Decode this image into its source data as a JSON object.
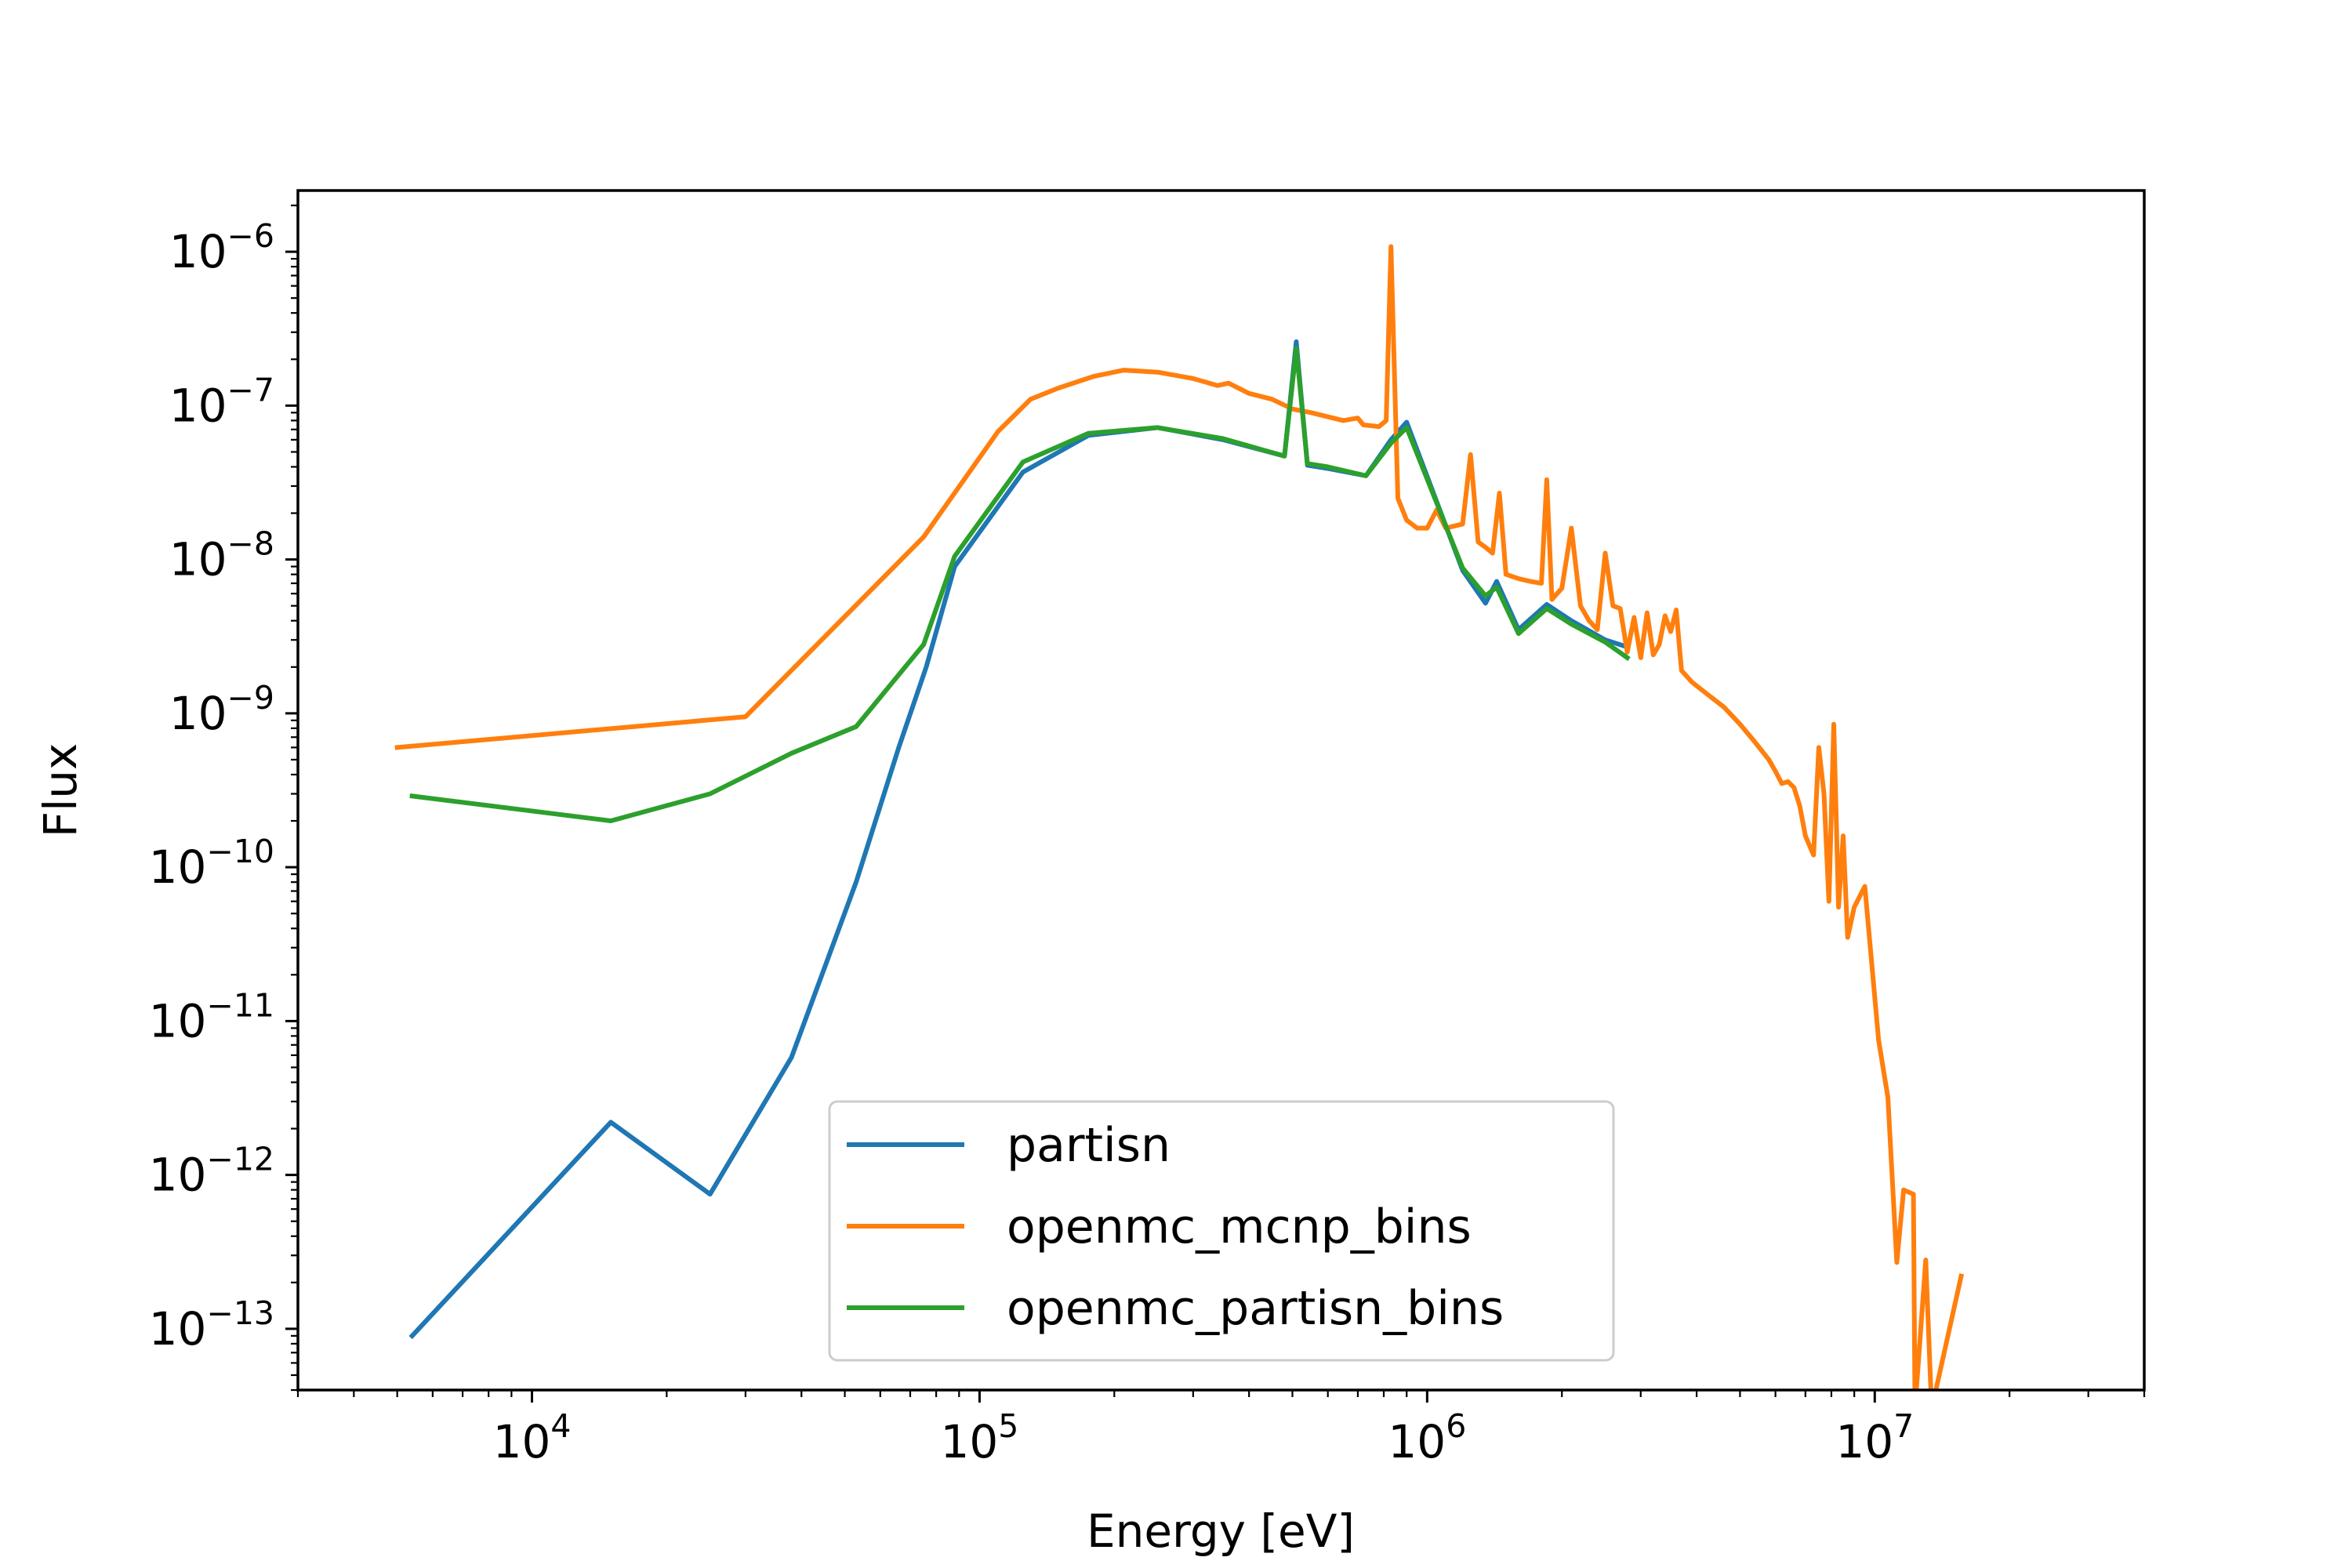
{
  "chart_data": {
    "type": "line",
    "xscale": "log",
    "yscale": "log",
    "xlabel": "Energy [eV]",
    "ylabel": "Flux",
    "xlim": [
      3000,
      40000000
    ],
    "ylim": [
      4e-14,
      2.5e-06
    ],
    "x_tick_exponents": [
      "4",
      "5",
      "6",
      "7"
    ],
    "y_tick_exponents": [
      "-6",
      "-7",
      "-8",
      "-9",
      "-10",
      "-11",
      "-12",
      "-13"
    ],
    "tick_base": "10",
    "legend": {
      "position": "lower-center"
    },
    "series": [
      {
        "name": "partisn",
        "color": "#1f77b4",
        "points": [
          [
            5400,
            9e-14
          ],
          [
            15000,
            2.2e-12
          ],
          [
            25000,
            7.5e-13
          ],
          [
            38000,
            5.8e-12
          ],
          [
            53000,
            8e-11
          ],
          [
            66000,
            6e-10
          ],
          [
            76000,
            2e-09
          ],
          [
            88000,
            9e-09
          ],
          [
            125000,
            3.7e-08
          ],
          [
            175000,
            6.4e-08
          ],
          [
            250000,
            7.2e-08
          ],
          [
            350000,
            6e-08
          ],
          [
            480000,
            4.7e-08
          ],
          [
            510000,
            2.6e-07
          ],
          [
            540000,
            4.1e-08
          ],
          [
            600000,
            3.9e-08
          ],
          [
            730000,
            3.5e-08
          ],
          [
            830000,
            6e-08
          ],
          [
            900000,
            7.8e-08
          ],
          [
            1200000,
            8.5e-09
          ],
          [
            1350000,
            5.2e-09
          ],
          [
            1430000,
            7.2e-09
          ],
          [
            1600000,
            3.5e-09
          ],
          [
            1850000,
            5.1e-09
          ],
          [
            2100000,
            4e-09
          ],
          [
            2500000,
            3e-09
          ],
          [
            2800000,
            2.7e-09
          ]
        ]
      },
      {
        "name": "openmc_mcnp_bins",
        "color": "#ff7f0e",
        "points": [
          [
            5000,
            6e-10
          ],
          [
            30000,
            9.5e-10
          ],
          [
            75000,
            1.4e-08
          ],
          [
            110000,
            6.8e-08
          ],
          [
            130000,
            1.1e-07
          ],
          [
            150000,
            1.3e-07
          ],
          [
            180000,
            1.55e-07
          ],
          [
            210000,
            1.7e-07
          ],
          [
            250000,
            1.65e-07
          ],
          [
            300000,
            1.5e-07
          ],
          [
            340000,
            1.35e-07
          ],
          [
            360000,
            1.4e-07
          ],
          [
            400000,
            1.2e-07
          ],
          [
            450000,
            1.1e-07
          ],
          [
            500000,
            9.5e-08
          ],
          [
            550000,
            9e-08
          ],
          [
            650000,
            8e-08
          ],
          [
            700000,
            8.3e-08
          ],
          [
            720000,
            7.5e-08
          ],
          [
            780000,
            7.3e-08
          ],
          [
            810000,
            8e-08
          ],
          [
            830000,
            1.08e-06
          ],
          [
            860000,
            2.5e-08
          ],
          [
            900000,
            1.8e-08
          ],
          [
            950000,
            1.6e-08
          ],
          [
            1000000,
            1.6e-08
          ],
          [
            1050000,
            2.1e-08
          ],
          [
            1100000,
            1.6e-08
          ],
          [
            1200000,
            1.7e-08
          ],
          [
            1250000,
            4.8e-08
          ],
          [
            1300000,
            1.3e-08
          ],
          [
            1350000,
            1.2e-08
          ],
          [
            1400000,
            1.1e-08
          ],
          [
            1450000,
            2.7e-08
          ],
          [
            1500000,
            8e-09
          ],
          [
            1600000,
            7.5e-09
          ],
          [
            1700000,
            7.2e-09
          ],
          [
            1800000,
            7e-09
          ],
          [
            1850000,
            3.3e-08
          ],
          [
            1900000,
            5.5e-09
          ],
          [
            2000000,
            6.5e-09
          ],
          [
            2100000,
            1.6e-08
          ],
          [
            2200000,
            5e-09
          ],
          [
            2300000,
            4e-09
          ],
          [
            2400000,
            3.5e-09
          ],
          [
            2500000,
            1.1e-08
          ],
          [
            2600000,
            5e-09
          ],
          [
            2700000,
            4.8e-09
          ],
          [
            2800000,
            2.5e-09
          ],
          [
            2900000,
            4.2e-09
          ],
          [
            3000000,
            2.3e-09
          ],
          [
            3100000,
            4.5e-09
          ],
          [
            3200000,
            2.4e-09
          ],
          [
            3300000,
            2.8e-09
          ],
          [
            3400000,
            4.3e-09
          ],
          [
            3500000,
            3.4e-09
          ],
          [
            3600000,
            4.7e-09
          ],
          [
            3700000,
            1.9e-09
          ],
          [
            3900000,
            1.6e-09
          ],
          [
            4200000,
            1.35e-09
          ],
          [
            4600000,
            1.1e-09
          ],
          [
            5000000,
            8.5e-10
          ],
          [
            5400000,
            6.5e-10
          ],
          [
            5800000,
            5e-10
          ],
          [
            6000000,
            4.2e-10
          ],
          [
            6200000,
            3.5e-10
          ],
          [
            6400000,
            3.6e-10
          ],
          [
            6600000,
            3.3e-10
          ],
          [
            6800000,
            2.5e-10
          ],
          [
            7000000,
            1.6e-10
          ],
          [
            7300000,
            1.2e-10
          ],
          [
            7500000,
            6e-10
          ],
          [
            7700000,
            3e-10
          ],
          [
            7900000,
            6e-11
          ],
          [
            8100000,
            8.5e-10
          ],
          [
            8300000,
            5.5e-11
          ],
          [
            8500000,
            1.6e-10
          ],
          [
            8700000,
            3.5e-11
          ],
          [
            9000000,
            5.5e-11
          ],
          [
            9500000,
            7.5e-11
          ],
          [
            10200000,
            7.5e-12
          ],
          [
            10700000,
            3.2e-12
          ],
          [
            11200000,
            2.7e-13
          ],
          [
            11600000,
            8e-13
          ],
          [
            12200000,
            7.5e-13
          ],
          [
            12300000,
            3e-14
          ],
          [
            13000000,
            2.8e-13
          ],
          [
            13400000,
            3e-14
          ],
          [
            15600000,
            2.2e-13
          ]
        ]
      },
      {
        "name": "openmc_partisn_bins",
        "color": "#2ca02c",
        "points": [
          [
            5400,
            2.9e-10
          ],
          [
            15000,
            2e-10
          ],
          [
            25000,
            3e-10
          ],
          [
            38000,
            5.5e-10
          ],
          [
            53000,
            8.2e-10
          ],
          [
            75000,
            2.8e-09
          ],
          [
            88000,
            1.05e-08
          ],
          [
            125000,
            4.3e-08
          ],
          [
            175000,
            6.6e-08
          ],
          [
            250000,
            7.2e-08
          ],
          [
            350000,
            6.1e-08
          ],
          [
            480000,
            4.7e-08
          ],
          [
            510000,
            2.35e-07
          ],
          [
            540000,
            4.2e-08
          ],
          [
            600000,
            4e-08
          ],
          [
            730000,
            3.5e-08
          ],
          [
            830000,
            5.7e-08
          ],
          [
            900000,
            7.2e-08
          ],
          [
            1200000,
            8.8e-09
          ],
          [
            1350000,
            5.8e-09
          ],
          [
            1430000,
            6.6e-09
          ],
          [
            1600000,
            3.3e-09
          ],
          [
            1850000,
            4.8e-09
          ],
          [
            2100000,
            3.8e-09
          ],
          [
            2500000,
            2.9e-09
          ],
          [
            2800000,
            2.3e-09
          ]
        ]
      }
    ]
  }
}
